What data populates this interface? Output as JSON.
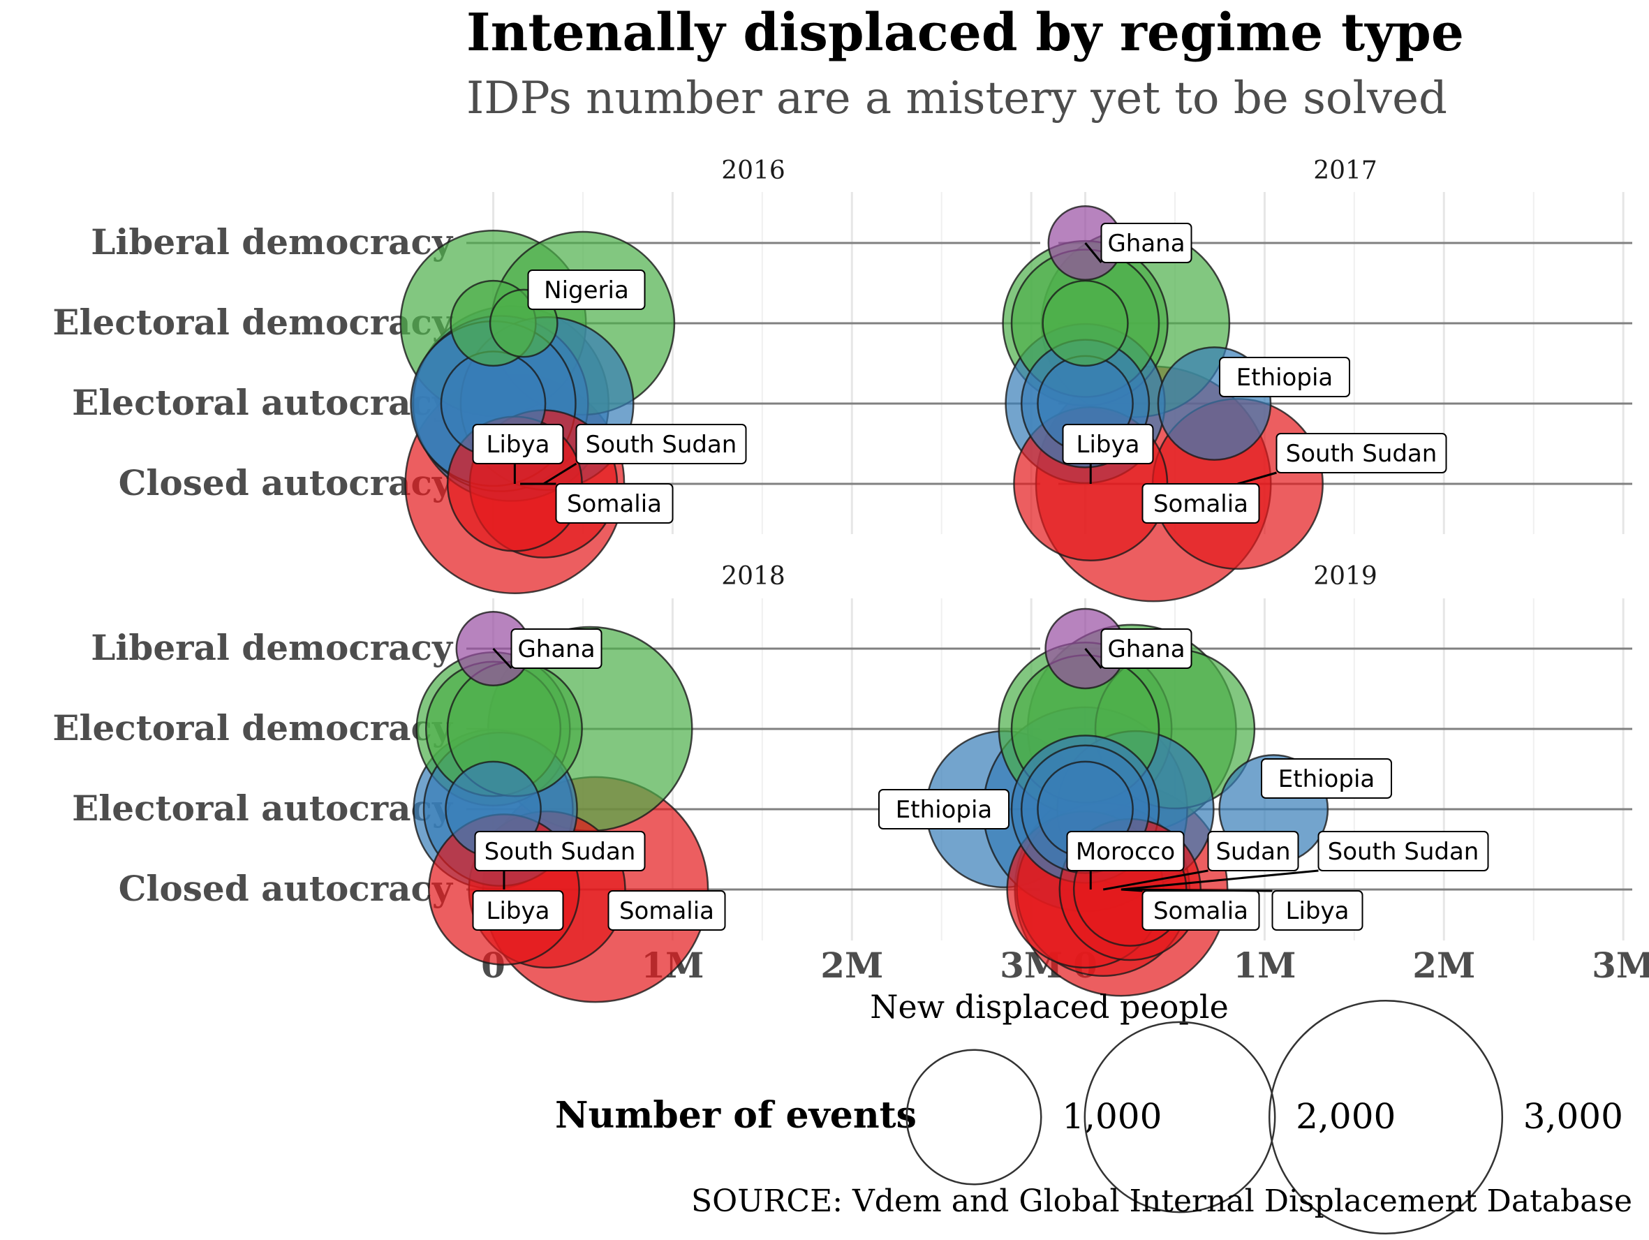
{
  "chart_data": {
    "type": "scatter",
    "title": "Intenally displaced by regime type",
    "subtitle": "IDPs number are a mistery yet to be solved",
    "xlabel": "New displaced people",
    "caption": "SOURCE: Vdem and Global Internal Displacement Database",
    "categories": [
      "Liberal democracy",
      "Electoral democracy",
      "Electoral autocracy",
      "Closed autocracy"
    ],
    "x_ticks": [
      {
        "value": 0,
        "label": "0"
      },
      {
        "value": 1000000,
        "label": "1M"
      },
      {
        "value": 2000000,
        "label": "2M"
      },
      {
        "value": 3000000,
        "label": "3M"
      }
    ],
    "xlim": [
      -150000,
      3050000
    ],
    "size_legend": {
      "title": "Number of events",
      "entries": [
        {
          "value": 1000,
          "label": "1,000"
        },
        {
          "value": 2000,
          "label": "2,000"
        },
        {
          "value": 3000,
          "label": "3,000"
        }
      ]
    },
    "colors": {
      "Liberal democracy": "#984EA3",
      "Electoral democracy": "#4DAF4A",
      "Electoral autocracy": "#377EB8",
      "Closed autocracy": "#E41A1C"
    },
    "panels": [
      {
        "year": "2016",
        "points": [
          {
            "regime": "Electoral democracy",
            "x": 0,
            "events": 1900
          },
          {
            "regime": "Electoral democracy",
            "x": 0,
            "events": 400
          },
          {
            "regime": "Electoral democracy",
            "x": 170000,
            "events": 250
          },
          {
            "regime": "Electoral democracy",
            "x": 500000,
            "events": 1850
          },
          {
            "regime": "Electoral autocracy",
            "x": 0,
            "events": 1500
          },
          {
            "regime": "Electoral autocracy",
            "x": 40000,
            "events": 1700
          },
          {
            "regime": "Electoral autocracy",
            "x": 100000,
            "events": 2100
          },
          {
            "regime": "Electoral autocracy",
            "x": 300000,
            "events": 1650
          },
          {
            "regime": "Electoral autocracy",
            "x": 0,
            "events": 600
          },
          {
            "regime": "Closed autocracy",
            "x": 120000,
            "events": 2650
          },
          {
            "regime": "Closed autocracy",
            "x": 120000,
            "events": 1000
          },
          {
            "regime": "Closed autocracy",
            "x": 280000,
            "events": 1200
          }
        ],
        "labels": [
          {
            "text": "Nigeria",
            "regime": "Electoral democracy",
            "x": 500000
          },
          {
            "text": "Libya",
            "regime": "Closed autocracy",
            "x": 120000
          },
          {
            "text": "South Sudan",
            "regime": "Closed autocracy",
            "x": 280000
          },
          {
            "text": "Somalia",
            "regime": "Closed autocracy",
            "x": 150000
          }
        ]
      },
      {
        "year": "2017",
        "points": [
          {
            "regime": "Liberal democracy",
            "x": 0,
            "events": 300
          },
          {
            "regime": "Electoral democracy",
            "x": 0,
            "events": 1500
          },
          {
            "regime": "Electoral democracy",
            "x": 0,
            "events": 1200
          },
          {
            "regime": "Electoral democracy",
            "x": 0,
            "events": 400
          },
          {
            "regime": "Electoral democracy",
            "x": 280000,
            "events": 1950
          },
          {
            "regime": "Electoral autocracy",
            "x": 0,
            "events": 1400
          },
          {
            "regime": "Electoral autocracy",
            "x": 0,
            "events": 900
          },
          {
            "regime": "Electoral autocracy",
            "x": 0,
            "events": 500
          },
          {
            "regime": "Electoral autocracy",
            "x": 720000,
            "events": 700
          },
          {
            "regime": "Closed autocracy",
            "x": 30000,
            "events": 1300
          },
          {
            "regime": "Closed autocracy",
            "x": 380000,
            "events": 3050
          },
          {
            "regime": "Closed autocracy",
            "x": 850000,
            "events": 1600
          }
        ],
        "labels": [
          {
            "text": "Ghana",
            "regime": "Liberal democracy",
            "x": 0
          },
          {
            "text": "Ethiopia",
            "regime": "Electoral autocracy",
            "x": 720000
          },
          {
            "text": "Libya",
            "regime": "Closed autocracy",
            "x": 30000
          },
          {
            "text": "South Sudan",
            "regime": "Closed autocracy",
            "x": 850000
          },
          {
            "text": "Somalia",
            "regime": "Closed autocracy",
            "x": 380000
          }
        ]
      },
      {
        "year": "2018",
        "points": [
          {
            "regime": "Liberal democracy",
            "x": 0,
            "events": 300
          },
          {
            "regime": "Electoral democracy",
            "x": 0,
            "events": 1300
          },
          {
            "regime": "Electoral democracy",
            "x": 0,
            "events": 1000
          },
          {
            "regime": "Electoral democracy",
            "x": 120000,
            "events": 1000
          },
          {
            "regime": "Electoral democracy",
            "x": 540000,
            "events": 2300
          },
          {
            "regime": "Electoral autocracy",
            "x": 0,
            "events": 1400
          },
          {
            "regime": "Electoral autocracy",
            "x": 40000,
            "events": 1300
          },
          {
            "regime": "Electoral autocracy",
            "x": 0,
            "events": 500
          },
          {
            "regime": "Electoral autocracy",
            "x": 2850000,
            "events": 1350
          },
          {
            "regime": "Closed autocracy",
            "x": 60000,
            "events": 1250
          },
          {
            "regime": "Closed autocracy",
            "x": 300000,
            "events": 1350
          },
          {
            "regime": "Closed autocracy",
            "x": 570000,
            "events": 2800
          }
        ],
        "labels": [
          {
            "text": "Ghana",
            "regime": "Liberal democracy",
            "x": 0
          },
          {
            "text": "Ethiopia",
            "regime": "Electoral autocracy",
            "x": 2850000
          },
          {
            "text": "South Sudan",
            "regime": "Closed autocracy",
            "x": 60000
          },
          {
            "text": "Libya",
            "regime": "Closed autocracy",
            "x": 60000
          },
          {
            "text": "Somalia",
            "regime": "Closed autocracy",
            "x": 570000
          }
        ]
      },
      {
        "year": "2019",
        "points": [
          {
            "regime": "Liberal democracy",
            "x": 0,
            "events": 350
          },
          {
            "regime": "Electoral democracy",
            "x": 0,
            "events": 1650
          },
          {
            "regime": "Electoral democracy",
            "x": 0,
            "events": 1200
          },
          {
            "regime": "Electoral democracy",
            "x": 260000,
            "events": 2400
          },
          {
            "regime": "Electoral democracy",
            "x": 500000,
            "events": 1400
          },
          {
            "regime": "Electoral autocracy",
            "x": 0,
            "events": 2300
          },
          {
            "regime": "Electoral autocracy",
            "x": 0,
            "events": 1200
          },
          {
            "regime": "Electoral autocracy",
            "x": 0,
            "events": 900
          },
          {
            "regime": "Electoral autocracy",
            "x": 0,
            "events": 500
          },
          {
            "regime": "Electoral autocracy",
            "x": 280000,
            "events": 1350
          },
          {
            "regime": "Electoral autocracy",
            "x": 1050000,
            "events": 650
          },
          {
            "regime": "Closed autocracy",
            "x": 0,
            "events": 1350
          },
          {
            "regime": "Closed autocracy",
            "x": 100000,
            "events": 1650
          },
          {
            "regime": "Closed autocracy",
            "x": 200000,
            "events": 2500
          },
          {
            "regime": "Closed autocracy",
            "x": 250000,
            "events": 1100
          },
          {
            "regime": "Closed autocracy",
            "x": 250000,
            "events": 700
          }
        ],
        "labels": [
          {
            "text": "Ghana",
            "regime": "Liberal democracy",
            "x": 0
          },
          {
            "text": "Ethiopia",
            "regime": "Electoral autocracy",
            "x": 1050000
          },
          {
            "text": "Morocco",
            "regime": "Closed autocracy",
            "x": 30000
          },
          {
            "text": "Sudan",
            "regime": "Closed autocracy",
            "x": 100000
          },
          {
            "text": "South Sudan",
            "regime": "Closed autocracy",
            "x": 200000
          },
          {
            "text": "Somalia",
            "regime": "Closed autocracy",
            "x": 200000
          },
          {
            "text": "Libya",
            "regime": "Closed autocracy",
            "x": 250000
          }
        ]
      }
    ]
  }
}
